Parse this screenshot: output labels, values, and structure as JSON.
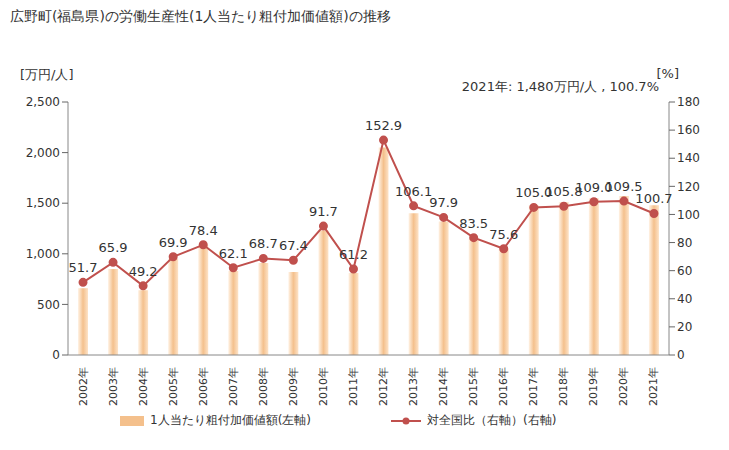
{
  "chart_data": {
    "type": "bar",
    "title": "広野町(福島県)の労働生産性(1人当たり粗付加価値額)の推移",
    "subtitle": "2021年: 1,480万円/人 , 100.7%",
    "y_label": "[万円/人]",
    "y2_label": "[%]",
    "categories": [
      "2002年",
      "2003年",
      "2004年",
      "2005年",
      "2006年",
      "2007年",
      "2008年",
      "2009年",
      "2010年",
      "2011年",
      "2012年",
      "2013年",
      "2014年",
      "2015年",
      "2016年",
      "2017年",
      "2018年",
      "2019年",
      "2020年",
      "2021年"
    ],
    "series": [
      {
        "name": "1人当たり粗付加価値額(左軸)",
        "type": "bar",
        "color": "#f4c08c",
        "values": [
          660,
          850,
          640,
          950,
          1090,
          830,
          910,
          820,
          1230,
          810,
          2050,
          1400,
          1320,
          1150,
          1050,
          1480,
          1510,
          1550,
          1570,
          1480
        ]
      },
      {
        "name": "対全国比（右軸）(右軸)",
        "type": "line",
        "axis": "y2",
        "color": "#c0504d",
        "marker": "circle",
        "data_labels": true,
        "values": [
          51.7,
          65.9,
          49.2,
          69.9,
          78.4,
          62.1,
          68.7,
          67.4,
          91.7,
          61.2,
          152.9,
          106.1,
          97.9,
          83.5,
          75.6,
          105.0,
          105.8,
          109.0,
          109.5,
          100.7
        ],
        "value_labels": [
          "51.7",
          "65.9",
          "49.2",
          "69.9",
          "78.4",
          "62.1",
          "68.7",
          "67.4",
          "91.7",
          "61.2",
          "152.9",
          "106.1",
          "97.9",
          "83.5",
          "75.6",
          "105.0",
          "105.8",
          "109.0",
          "109.5",
          "100.7"
        ]
      }
    ],
    "ylim": [
      0,
      2500
    ],
    "yticks": [
      0,
      500,
      {
        "value": 1000,
        "label": "1,000"
      },
      {
        "value": 1500,
        "label": "1,500"
      },
      {
        "value": 2000,
        "label": "2,000"
      },
      {
        "value": 2500,
        "label": "2,500"
      }
    ],
    "y2lim": [
      0,
      180
    ],
    "y2ticks": [
      0,
      20,
      40,
      60,
      80,
      100,
      120,
      140,
      160,
      180
    ],
    "grid": false
  }
}
